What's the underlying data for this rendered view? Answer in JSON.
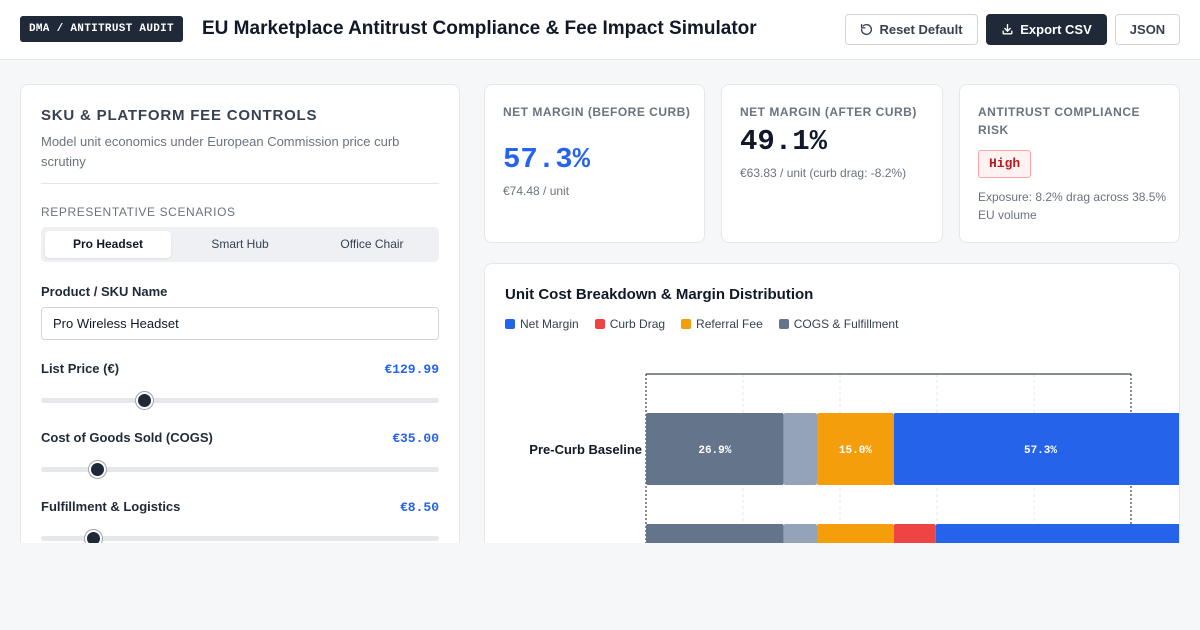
{
  "header": {
    "badge": "DMA / ANTITRUST AUDIT",
    "title": "EU Marketplace Antitrust Compliance & Fee Impact Simulator",
    "reset_label": "Reset Default",
    "export_label": "Export CSV",
    "json_label": "JSON"
  },
  "controls": {
    "title": "SKU & PLATFORM FEE CONTROLS",
    "subtitle": "Model unit economics under European Commission price curb scrutiny",
    "scenarios_label": "REPRESENTATIVE SCENARIOS",
    "scenarios": [
      "Pro Headset",
      "Smart Hub",
      "Office Chair"
    ],
    "active_scenario": "Pro Headset",
    "sku_label": "Product / SKU Name",
    "sku_value": "Pro Wireless Headset",
    "list_price_label": "List Price (€)",
    "list_price_value": "€129.99",
    "list_price_level": 0.26,
    "cogs_label": "Cost of Goods Sold (COGS)",
    "cogs_value": "€35.00",
    "cogs_level": 0.14,
    "fulfillment_label": "Fulfillment & Logistics",
    "fulfillment_value": "€8.50",
    "fulfillment_level": 0.13
  },
  "kpis": {
    "before_label": "NET MARGIN (BEFORE CURB)",
    "before_value": "57.3%",
    "before_note": "€74.48 / unit",
    "after_label": "NET MARGIN (AFTER CURB)",
    "after_value": "49.1%",
    "after_note": "€63.83 / unit (curb drag: -8.2%)",
    "risk_label": "ANTITRUST COMPLIANCE RISK",
    "risk_value": "High",
    "risk_note": "Exposure: 8.2% drag across 38.5% EU volume"
  },
  "colors": {
    "net_margin": "#2563eb",
    "curb_drag": "#ef4444",
    "referral_fee": "#f59e0b",
    "cogs": "#64748b",
    "fulfillment": "#94a3b8"
  },
  "chart_data": {
    "type": "bar",
    "orientation": "horizontal-stacked",
    "title": "Unit Cost Breakdown & Margin Distribution",
    "legend": [
      "Net Margin",
      "Curb Drag",
      "Referral Fee",
      "COGS & Fulfillment"
    ],
    "categories": [
      "Pre-Curb Baseline",
      ""
    ],
    "series": [
      {
        "name": "COGS & Fulfillment",
        "values": [
          26.9,
          26.9
        ],
        "label": "26.9%"
      },
      {
        "name": "",
        "values": [
          6.5,
          6.5
        ]
      },
      {
        "name": "Referral Fee",
        "values": [
          15.0,
          15.0
        ],
        "label": "15.0%"
      },
      {
        "name": "Curb Drag",
        "values": [
          0,
          8.2
        ]
      },
      {
        "name": "Net Margin",
        "values": [
          57.3,
          49.1
        ],
        "label": "57.3%"
      }
    ]
  }
}
